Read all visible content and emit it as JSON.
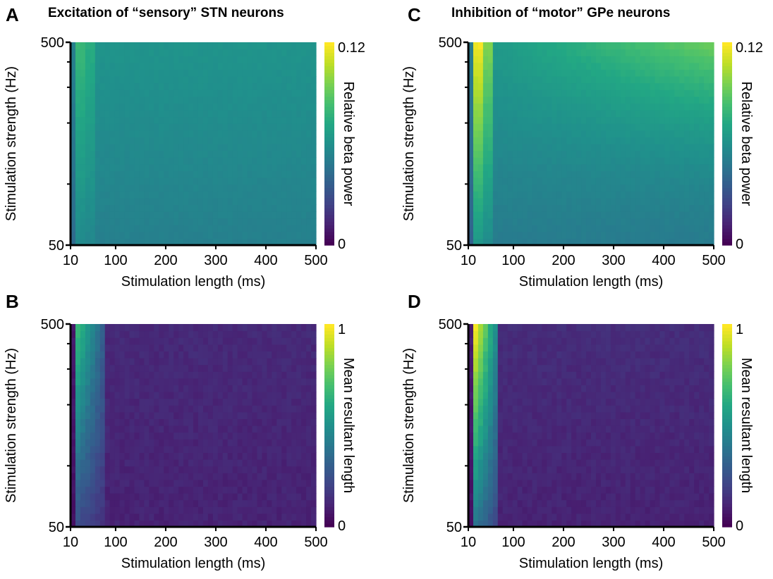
{
  "column_titles": {
    "left": "Excitation of “sensory” STN neurons",
    "right": "Inhibition of “motor” GPe neurons"
  },
  "chart_data": [
    {
      "panel": "A",
      "type": "heatmap",
      "xlabel": "Stimulation length (ms)",
      "ylabel": "Stimulation strength (Hz)",
      "x_ticks": [
        "10",
        "100",
        "200",
        "300",
        "400",
        "500"
      ],
      "x_range": [
        10,
        500
      ],
      "y_ticks": [
        "50",
        "500"
      ],
      "y_range": [
        50,
        500
      ],
      "y_scale": "log",
      "colorbar": {
        "label": "Relative beta power",
        "min_label": "0",
        "max_label": "0.12",
        "range": [
          0,
          0.12
        ],
        "colormap": "viridis"
      },
      "grid": false,
      "description_values": {
        "pattern": "stn_excitation_beta",
        "background": 0.062,
        "peak": 0.083,
        "peak_x_range": [
          10,
          50
        ]
      }
    },
    {
      "panel": "B",
      "type": "heatmap",
      "xlabel": "Stimulation length (ms)",
      "ylabel": "Stimulation strength (Hz)",
      "x_ticks": [
        "10",
        "100",
        "200",
        "300",
        "400",
        "500"
      ],
      "x_range": [
        10,
        500
      ],
      "y_ticks": [
        "50",
        "500"
      ],
      "y_range": [
        50,
        500
      ],
      "y_scale": "log",
      "colorbar": {
        "label": "Mean resultant length",
        "min_label": "0",
        "max_label": "1",
        "range": [
          0,
          1
        ],
        "colormap": "viridis"
      },
      "grid": false,
      "description_values": {
        "pattern": "stn_excitation_mrl",
        "background": 0.12,
        "peak": 0.72,
        "peak_x_range": [
          10,
          60
        ]
      }
    },
    {
      "panel": "C",
      "type": "heatmap",
      "xlabel": "Stimulation length (ms)",
      "ylabel": "Stimulation strength (Hz)",
      "x_ticks": [
        "10",
        "100",
        "200",
        "300",
        "400",
        "500"
      ],
      "x_range": [
        10,
        500
      ],
      "y_ticks": [
        "50",
        "500"
      ],
      "y_range": [
        50,
        500
      ],
      "y_scale": "log",
      "colorbar": {
        "label": "Relative beta power",
        "min_label": "0",
        "max_label": "0.12",
        "range": [
          0,
          0.12
        ],
        "colormap": "viridis"
      },
      "grid": false,
      "description_values": {
        "pattern": "gpe_inhibition_beta",
        "background": 0.058,
        "peak": 0.12,
        "peak_x_range": [
          10,
          40
        ]
      }
    },
    {
      "panel": "D",
      "type": "heatmap",
      "xlabel": "Stimulation length (ms)",
      "ylabel": "Stimulation strength (Hz)",
      "x_ticks": [
        "10",
        "100",
        "200",
        "300",
        "400",
        "500"
      ],
      "x_range": [
        10,
        500
      ],
      "y_ticks": [
        "50",
        "500"
      ],
      "y_range": [
        50,
        500
      ],
      "y_scale": "log",
      "colorbar": {
        "label": "Mean resultant length",
        "min_label": "0",
        "max_label": "1",
        "range": [
          0,
          1
        ],
        "colormap": "viridis"
      },
      "grid": false,
      "description_values": {
        "pattern": "gpe_inhibition_mrl",
        "background": 0.12,
        "peak": 0.95,
        "peak_x_range": [
          10,
          40
        ]
      }
    }
  ]
}
